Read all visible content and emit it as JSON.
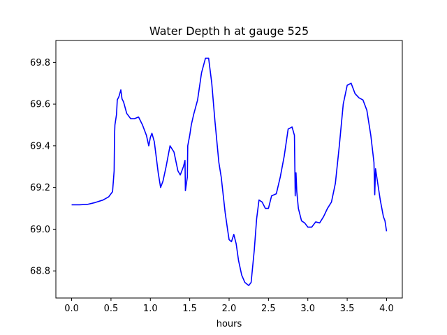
{
  "chart_data": {
    "type": "line",
    "title": "Water Depth h at gauge 525",
    "xlabel": "hours",
    "ylabel": "",
    "xlim": [
      -0.2,
      4.2
    ],
    "ylim": [
      68.67,
      69.905
    ],
    "xticks": [
      0.0,
      0.5,
      1.0,
      1.5,
      2.0,
      2.5,
      3.0,
      3.5,
      4.0
    ],
    "xtick_labels": [
      "0.0",
      "0.5",
      "1.0",
      "1.5",
      "2.0",
      "2.5",
      "3.0",
      "3.5",
      "4.0"
    ],
    "yticks": [
      68.8,
      69.0,
      69.2,
      69.4,
      69.6,
      69.8
    ],
    "ytick_labels": [
      "68.8",
      "69.0",
      "69.2",
      "69.4",
      "69.6",
      "69.8"
    ],
    "grid": false,
    "series": [
      {
        "name": "",
        "color": "#0000ff",
        "points": [
          [
            0.0,
            69.117
          ],
          [
            0.1,
            69.117
          ],
          [
            0.2,
            69.119
          ],
          [
            0.3,
            69.128
          ],
          [
            0.4,
            69.14
          ],
          [
            0.47,
            69.155
          ],
          [
            0.52,
            69.18
          ],
          [
            0.54,
            69.28
          ],
          [
            0.545,
            69.45
          ],
          [
            0.55,
            69.5
          ],
          [
            0.57,
            69.55
          ],
          [
            0.58,
            69.62
          ],
          [
            0.6,
            69.635
          ],
          [
            0.625,
            69.668
          ],
          [
            0.64,
            69.625
          ],
          [
            0.66,
            69.61
          ],
          [
            0.7,
            69.555
          ],
          [
            0.75,
            69.53
          ],
          [
            0.8,
            69.53
          ],
          [
            0.85,
            69.538
          ],
          [
            0.9,
            69.5
          ],
          [
            0.95,
            69.45
          ],
          [
            0.98,
            69.4
          ],
          [
            1.0,
            69.44
          ],
          [
            1.02,
            69.46
          ],
          [
            1.05,
            69.42
          ],
          [
            1.1,
            69.27
          ],
          [
            1.13,
            69.2
          ],
          [
            1.16,
            69.23
          ],
          [
            1.2,
            69.3
          ],
          [
            1.25,
            69.4
          ],
          [
            1.3,
            69.37
          ],
          [
            1.35,
            69.28
          ],
          [
            1.38,
            69.26
          ],
          [
            1.42,
            69.3
          ],
          [
            1.44,
            69.33
          ],
          [
            1.445,
            69.185
          ],
          [
            1.47,
            69.25
          ],
          [
            1.475,
            69.4
          ],
          [
            1.5,
            69.45
          ],
          [
            1.52,
            69.5
          ],
          [
            1.55,
            69.55
          ],
          [
            1.6,
            69.62
          ],
          [
            1.65,
            69.75
          ],
          [
            1.7,
            69.82
          ],
          [
            1.74,
            69.82
          ],
          [
            1.78,
            69.7
          ],
          [
            1.82,
            69.52
          ],
          [
            1.87,
            69.32
          ],
          [
            1.9,
            69.25
          ],
          [
            1.95,
            69.08
          ],
          [
            1.98,
            69.0
          ],
          [
            2.0,
            68.95
          ],
          [
            2.03,
            68.94
          ],
          [
            2.06,
            68.975
          ],
          [
            2.09,
            68.93
          ],
          [
            2.12,
            68.85
          ],
          [
            2.16,
            68.78
          ],
          [
            2.2,
            68.745
          ],
          [
            2.25,
            68.73
          ],
          [
            2.28,
            68.745
          ],
          [
            2.32,
            68.9
          ],
          [
            2.35,
            69.05
          ],
          [
            2.38,
            69.14
          ],
          [
            2.42,
            69.13
          ],
          [
            2.46,
            69.1
          ],
          [
            2.5,
            69.1
          ],
          [
            2.54,
            69.16
          ],
          [
            2.6,
            69.17
          ],
          [
            2.65,
            69.25
          ],
          [
            2.7,
            69.35
          ],
          [
            2.75,
            69.48
          ],
          [
            2.8,
            69.49
          ],
          [
            2.83,
            69.45
          ],
          [
            2.84,
            69.16
          ],
          [
            2.85,
            69.27
          ],
          [
            2.86,
            69.18
          ],
          [
            2.88,
            69.1
          ],
          [
            2.92,
            69.04
          ],
          [
            2.96,
            69.03
          ],
          [
            3.0,
            69.01
          ],
          [
            3.05,
            69.01
          ],
          [
            3.1,
            69.035
          ],
          [
            3.15,
            69.03
          ],
          [
            3.2,
            69.06
          ],
          [
            3.25,
            69.1
          ],
          [
            3.3,
            69.13
          ],
          [
            3.35,
            69.22
          ],
          [
            3.4,
            69.4
          ],
          [
            3.45,
            69.6
          ],
          [
            3.5,
            69.69
          ],
          [
            3.55,
            69.7
          ],
          [
            3.6,
            69.65
          ],
          [
            3.65,
            69.63
          ],
          [
            3.7,
            69.62
          ],
          [
            3.75,
            69.57
          ],
          [
            3.8,
            69.45
          ],
          [
            3.84,
            69.32
          ],
          [
            3.85,
            69.165
          ],
          [
            3.86,
            69.29
          ],
          [
            3.88,
            69.24
          ],
          [
            3.92,
            69.14
          ],
          [
            3.96,
            69.06
          ],
          [
            3.98,
            69.04
          ],
          [
            4.0,
            68.99
          ]
        ]
      }
    ]
  }
}
